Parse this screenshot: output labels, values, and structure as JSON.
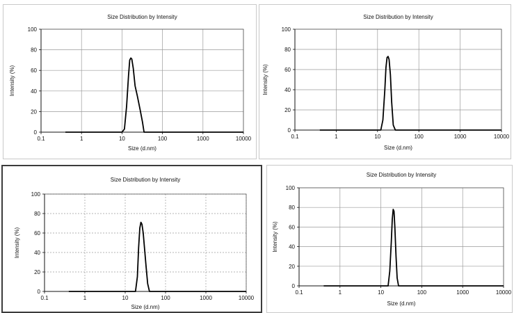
{
  "chart_data": [
    {
      "type": "line",
      "title": "Size Distribution by Intensity",
      "xlabel": "Size (d.nm)",
      "ylabel": "Intensity (%)",
      "xscale": "log",
      "xlim": [
        0.1,
        10000
      ],
      "ylim": [
        0,
        100
      ],
      "xticks": [
        "0.1",
        "1",
        "10",
        "100",
        "1000",
        "10000"
      ],
      "yticks": [
        "0",
        "20",
        "40",
        "60",
        "80",
        "100"
      ],
      "grid": "solid",
      "series": [
        {
          "x": [
            0.4,
            10,
            11.5,
            13,
            14.5,
            15.5,
            16.5,
            17.5,
            19,
            21,
            24,
            28,
            32,
            35,
            40,
            100,
            1000,
            10000
          ],
          "y": [
            0,
            0,
            3,
            25,
            55,
            70,
            72,
            71,
            62,
            45,
            35,
            22,
            10,
            0,
            0,
            0,
            0,
            0
          ]
        }
      ]
    },
    {
      "type": "line",
      "title": "Size Distribution by Intensity",
      "xlabel": "Size (d.nm)",
      "ylabel": "Intensity (%)",
      "xscale": "log",
      "xlim": [
        0.1,
        10000
      ],
      "ylim": [
        0,
        100
      ],
      "xticks": [
        "0.1",
        "1",
        "10",
        "100",
        "1000",
        "10000"
      ],
      "yticks": [
        "0",
        "20",
        "40",
        "60",
        "80",
        "100"
      ],
      "grid": "solid",
      "series": [
        {
          "x": [
            0.4,
            12,
            13.5,
            15,
            16,
            17,
            18,
            19,
            20.5,
            22,
            24,
            27,
            100,
            1000,
            10000
          ],
          "y": [
            0,
            0,
            10,
            40,
            62,
            72,
            73,
            70,
            55,
            28,
            5,
            0,
            0,
            0,
            0
          ]
        }
      ]
    },
    {
      "type": "line",
      "title": "Size Distribution by Intensity",
      "xlabel": "Size (d.nm)",
      "ylabel": "Intensity (%)",
      "xscale": "log",
      "xlim": [
        0.1,
        10000
      ],
      "ylim": [
        0,
        100
      ],
      "xticks": [
        "0.1",
        "1",
        "10",
        "100",
        "1000",
        "10000"
      ],
      "yticks": [
        "0",
        "20",
        "40",
        "60",
        "80",
        "100"
      ],
      "grid": "dashed",
      "series": [
        {
          "x": [
            0.4,
            18,
            20,
            21.5,
            23,
            24.5,
            26,
            28,
            30,
            33,
            36,
            40,
            100,
            1000,
            10000
          ],
          "y": [
            0,
            0,
            15,
            45,
            65,
            71,
            69,
            60,
            45,
            25,
            8,
            0,
            0,
            0,
            0
          ]
        }
      ]
    },
    {
      "type": "line",
      "title": "Size Distribution by Intensity",
      "xlabel": "Size (d.nm)",
      "ylabel": "Intensity (%)",
      "xscale": "log",
      "xlim": [
        0.1,
        10000
      ],
      "ylim": [
        0,
        100
      ],
      "xticks": [
        "0.1",
        "1",
        "10",
        "100",
        "1000",
        "10000"
      ],
      "yticks": [
        "0",
        "20",
        "40",
        "60",
        "80",
        "100"
      ],
      "grid": "solid",
      "series": [
        {
          "x": [
            0.4,
            15,
            16.5,
            18,
            19,
            20,
            21,
            22,
            23.5,
            25,
            27,
            100,
            1000,
            10000
          ],
          "y": [
            0,
            0,
            15,
            45,
            68,
            78,
            76,
            60,
            30,
            8,
            0,
            0,
            0,
            0
          ]
        }
      ]
    }
  ]
}
